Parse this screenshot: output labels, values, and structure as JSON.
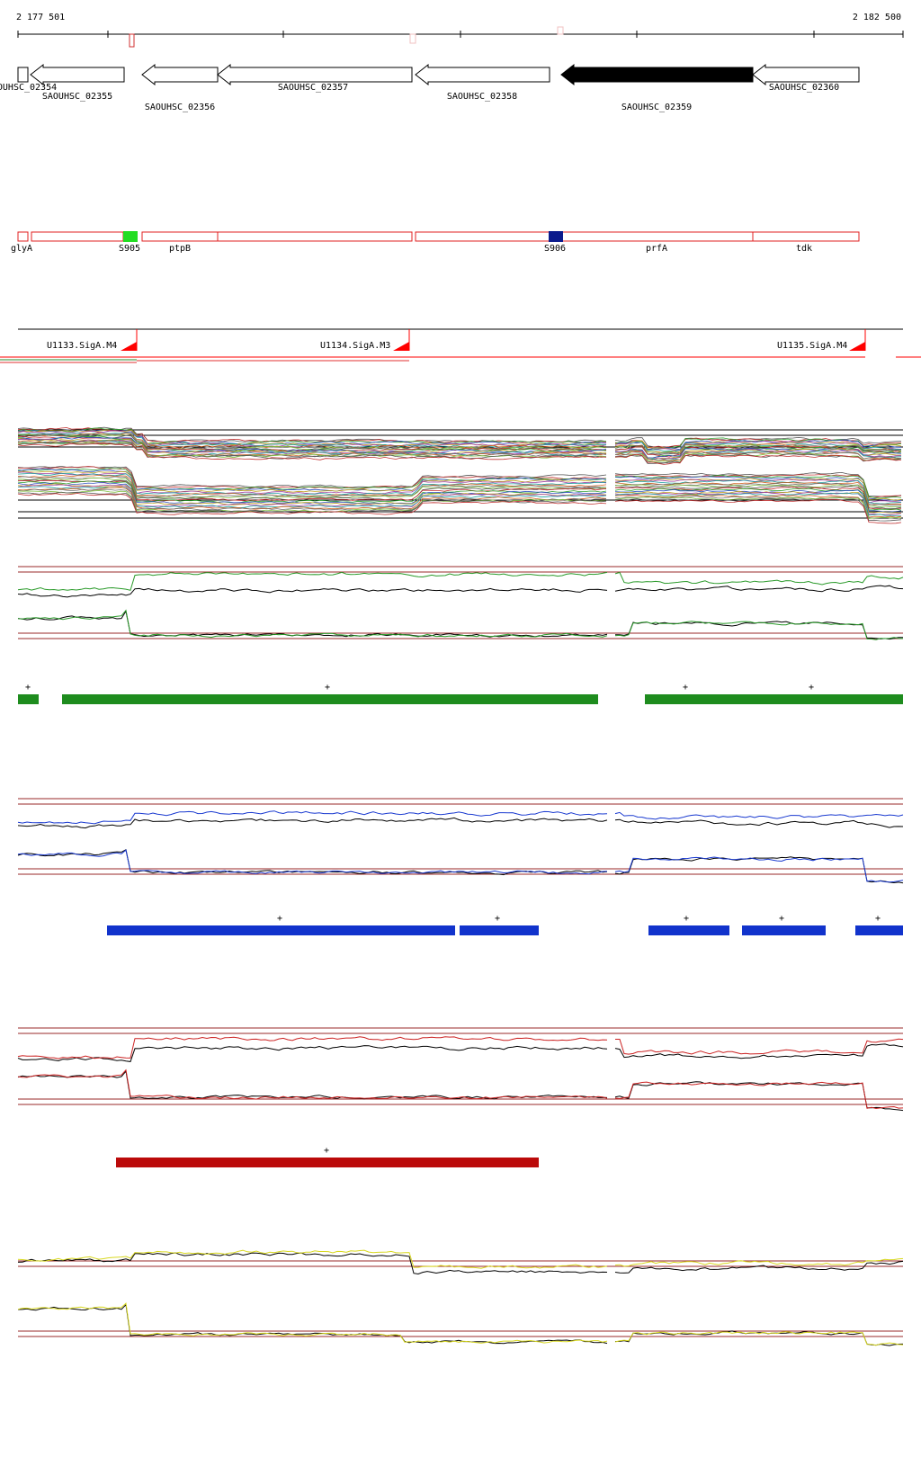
{
  "coordinates": {
    "start": "2 177 501",
    "end": "2 182 500"
  },
  "genes": [
    {
      "id": "SAOUHSC_02354",
      "label": "OUHSC_02354",
      "strand": "-",
      "filled": false
    },
    {
      "id": "SAOUHSC_02355",
      "label": "SAOUHSC_02355",
      "strand": "-",
      "filled": false
    },
    {
      "id": "SAOUHSC_02356",
      "label": "SAOUHSC_02356",
      "strand": "-",
      "filled": false
    },
    {
      "id": "SAOUHSC_02357",
      "label": "SAOUHSC_02357",
      "strand": "-",
      "filled": false
    },
    {
      "id": "SAOUHSC_02358",
      "label": "SAOUHSC_02358",
      "strand": "-",
      "filled": false
    },
    {
      "id": "SAOUHSC_02359",
      "label": "SAOUHSC_02359",
      "strand": "-",
      "filled": true
    },
    {
      "id": "SAOUHSC_02360",
      "label": "SAOUHSC_02360",
      "strand": "-",
      "filled": false
    }
  ],
  "annotations": [
    {
      "label": "glyA",
      "kind": "gene"
    },
    {
      "label": "S905",
      "kind": "marker",
      "color": "#22dd22"
    },
    {
      "label": "ptpB",
      "kind": "gene"
    },
    {
      "label": "S906",
      "kind": "marker",
      "color": "#0a1a8c"
    },
    {
      "label": "prfA",
      "kind": "gene"
    },
    {
      "label": "tdk",
      "kind": "gene"
    }
  ],
  "promoters": [
    {
      "label": "U1133.SigA.M4"
    },
    {
      "label": "U1134.SigA.M3"
    },
    {
      "label": "U1135.SigA.M4"
    }
  ],
  "expression_tracks": [
    {
      "name": "green",
      "color": "#2a9a2a",
      "segment_color": "#1e8c1e",
      "segment_labels": [
        "+",
        "+",
        "+",
        "+"
      ]
    },
    {
      "name": "blue",
      "color": "#1a3ad0",
      "segment_color": "#1133cc",
      "segment_labels": [
        "+",
        "+",
        "+",
        "+",
        "+"
      ]
    },
    {
      "name": "red",
      "color": "#cc2222",
      "segment_color": "#bb0a0a",
      "segment_labels": [
        "+"
      ]
    },
    {
      "name": "yellow",
      "color": "#d8d820",
      "segment_color": null,
      "segment_labels": []
    }
  ],
  "colors": {
    "annotation_outline": "#e02020",
    "promoter_flag": "#ff0000",
    "reference_line": "#9a2a2a"
  }
}
